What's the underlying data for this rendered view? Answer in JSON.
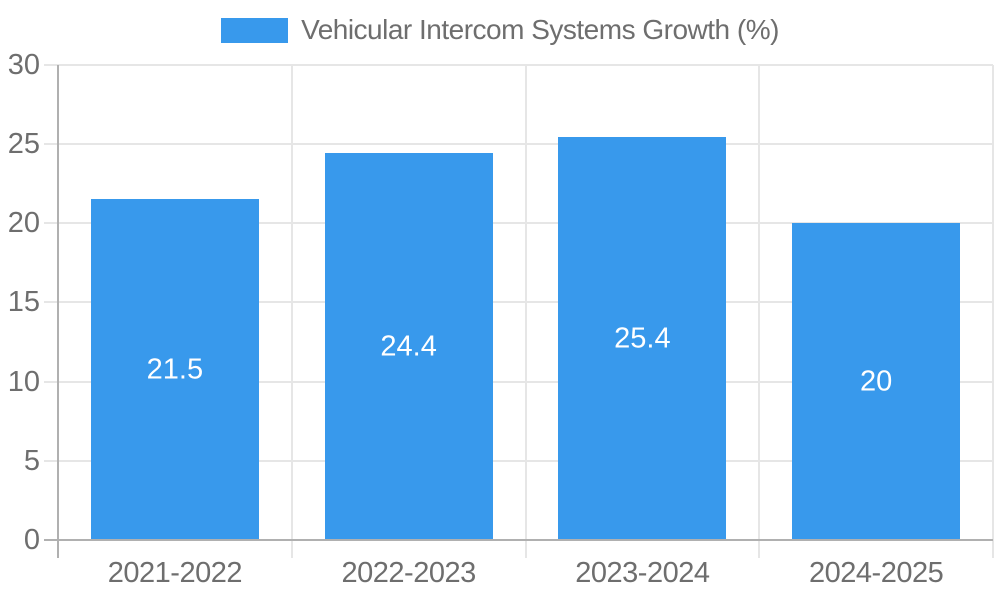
{
  "chart_data": {
    "type": "bar",
    "title": "Vehicular Intercom Systems Growth (%)",
    "categories": [
      "2021-2022",
      "2022-2023",
      "2023-2024",
      "2024-2025"
    ],
    "values": [
      21.5,
      24.4,
      25.4,
      20
    ],
    "value_labels": [
      "21.5",
      "24.4",
      "25.4",
      "20"
    ],
    "xlabel": "",
    "ylabel": "",
    "ylim": [
      0,
      30
    ],
    "yticks": [
      0,
      5,
      10,
      15,
      20,
      25,
      30
    ],
    "grid": true,
    "legend_position": "top"
  },
  "legend": {
    "series_label": "Vehicular Intercom Systems Growth (%)"
  },
  "colors": {
    "bar": "#3899ec",
    "text": "#6e6e6e",
    "grid": "#e6e6e6",
    "axis": "#b0b0b0",
    "value_text": "#ffffff",
    "background": "#ffffff"
  }
}
